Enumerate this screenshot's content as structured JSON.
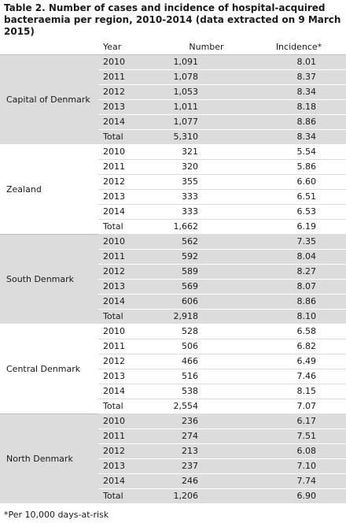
{
  "title": "Table 2. Number of cases and incidence of hospital-acquired bacteraemia per region, 2010-2014 (data extracted on 9 March 2015)",
  "headers": {
    "year": "Year",
    "number": "Number",
    "incidence": "Incidence*"
  },
  "regions": [
    {
      "name": "Capital of Denmark",
      "rows": [
        {
          "year": "2010",
          "number": "1,091",
          "incidence": "8.01"
        },
        {
          "year": "2011",
          "number": "1,078",
          "incidence": "8.37"
        },
        {
          "year": "2012",
          "number": "1,053",
          "incidence": "8.34"
        },
        {
          "year": "2013",
          "number": "1,011",
          "incidence": "8.18"
        },
        {
          "year": "2014",
          "number": "1,077",
          "incidence": "8.86"
        },
        {
          "year": "Total",
          "number": "5,310",
          "incidence": "8.34"
        }
      ]
    },
    {
      "name": "Zealand",
      "rows": [
        {
          "year": "2010",
          "number": "321",
          "incidence": "5.54"
        },
        {
          "year": "2011",
          "number": "320",
          "incidence": "5.86"
        },
        {
          "year": "2012",
          "number": "355",
          "incidence": "6.60"
        },
        {
          "year": "2013",
          "number": "333",
          "incidence": "6.51"
        },
        {
          "year": "2014",
          "number": "333",
          "incidence": "6.53"
        },
        {
          "year": "Total",
          "number": "1,662",
          "incidence": "6.19"
        }
      ]
    },
    {
      "name": "South Denmark",
      "rows": [
        {
          "year": "2010",
          "number": "562",
          "incidence": "7.35"
        },
        {
          "year": "2011",
          "number": "592",
          "incidence": "8.04"
        },
        {
          "year": "2012",
          "number": "589",
          "incidence": "8.27"
        },
        {
          "year": "2013",
          "number": "569",
          "incidence": "8.07"
        },
        {
          "year": "2014",
          "number": "606",
          "incidence": "8.86"
        },
        {
          "year": "Total",
          "number": "2,918",
          "incidence": "8.10"
        }
      ]
    },
    {
      "name": "Central Denmark",
      "rows": [
        {
          "year": "2010",
          "number": "528",
          "incidence": "6.58"
        },
        {
          "year": "2011",
          "number": "506",
          "incidence": "6.82"
        },
        {
          "year": "2012",
          "number": "466",
          "incidence": "6.49"
        },
        {
          "year": "2013",
          "number": "516",
          "incidence": "7.46"
        },
        {
          "year": "2014",
          "number": "538",
          "incidence": "8.15"
        },
        {
          "year": "Total",
          "number": "2,554",
          "incidence": "7.07"
        }
      ]
    },
    {
      "name": "North Denmark",
      "rows": [
        {
          "year": "2010",
          "number": "236",
          "incidence": "6.17"
        },
        {
          "year": "2011",
          "number": "274",
          "incidence": "7.51"
        },
        {
          "year": "2012",
          "number": "213",
          "incidence": "6.08"
        },
        {
          "year": "2013",
          "number": "237",
          "incidence": "7.10"
        },
        {
          "year": "2014",
          "number": "246",
          "incidence": "7.74"
        },
        {
          "year": "Total",
          "number": "1,206",
          "incidence": "6.90"
        }
      ]
    }
  ],
  "footnote": "*Per 10,000 days-at-risk",
  "colors": {
    "shade": "#dcdcdc",
    "text": "#1a1a1a"
  }
}
